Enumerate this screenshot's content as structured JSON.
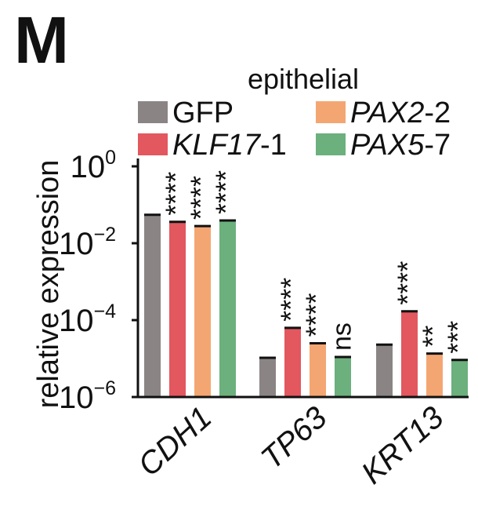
{
  "panel_label": "M",
  "chart_data": {
    "type": "bar",
    "title": "epithelial",
    "ylabel": "relative expression",
    "yscale": "log",
    "ylim": [
      1e-06,
      1
    ],
    "yticks": [
      {
        "value": 1,
        "base": "10",
        "exp": "0"
      },
      {
        "value": 0.01,
        "base": "10",
        "exp": "−2"
      },
      {
        "value": 0.0001,
        "base": "10",
        "exp": "−4"
      },
      {
        "value": 1e-06,
        "base": "10",
        "exp": "−6"
      }
    ],
    "categories": [
      "CDH1",
      "TP63",
      "KRT13"
    ],
    "series": [
      {
        "name": "GFP",
        "name_italic": "",
        "name_suffix": "",
        "color": "#8a8584",
        "values": [
          0.055,
          1.05e-05,
          2.3e-05
        ],
        "significance": [
          "",
          "",
          ""
        ]
      },
      {
        "name": "",
        "name_italic": "KLF17",
        "name_suffix": "-1",
        "color": "#e3575f",
        "values": [
          0.036,
          6.3e-05,
          0.00017
        ],
        "significance": [
          "****",
          "****",
          "****"
        ]
      },
      {
        "name": "",
        "name_italic": "PAX2",
        "name_suffix": "-2",
        "color": "#f4a672",
        "values": [
          0.028,
          2.5e-05,
          1.35e-05
        ],
        "significance": [
          "****",
          "****",
          "**"
        ]
      },
      {
        "name": "",
        "name_italic": "PAX5",
        "name_suffix": "-7",
        "color": "#6bb07d",
        "values": [
          0.039,
          1.1e-05,
          9.2e-06
        ],
        "significance": [
          "****",
          "ns",
          "***"
        ]
      }
    ]
  }
}
